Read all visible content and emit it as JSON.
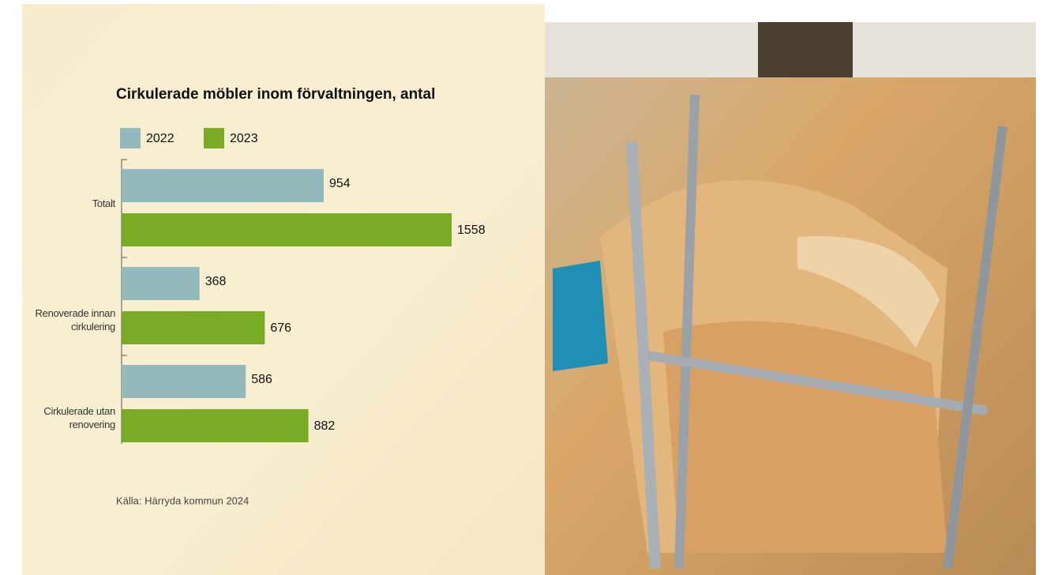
{
  "chart_data": {
    "type": "bar",
    "orientation": "horizontal",
    "title": "Cirkulerade möbler inom förvaltningen, antal",
    "categories": [
      "Totalt",
      "Renoverade innan cirkulering",
      "Cirkulerade utan renovering"
    ],
    "series": [
      {
        "name": "2022",
        "color": "#93b9bd",
        "values": [
          954,
          368,
          586
        ]
      },
      {
        "name": "2023",
        "color": "#7aab27",
        "values": [
          1558,
          676,
          882
        ]
      }
    ],
    "source": "Källa: Härryda kommun 2024"
  }
}
